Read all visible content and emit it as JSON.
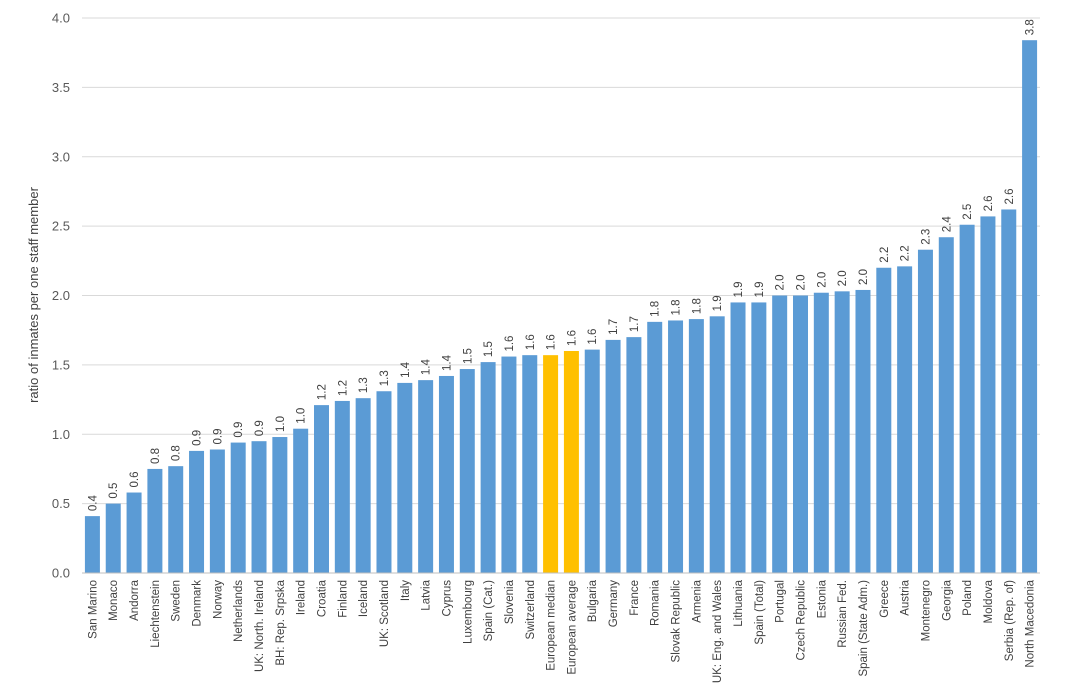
{
  "chart_data": {
    "type": "bar",
    "ylabel": "ratio of inmates per one staff member",
    "ylim": [
      0,
      4.0
    ],
    "yticks": [
      "0.0",
      "0.5",
      "1.0",
      "1.5",
      "2.0",
      "2.5",
      "3.0",
      "3.5",
      "4.0"
    ],
    "grid": true,
    "colors": {
      "bar": "#5b9bd5",
      "highlight": "#ffc000",
      "grid": "#d9d9d9"
    },
    "categories": [
      "San Marino",
      "Monaco",
      "Andorra",
      "Liechtenstein",
      "Sweden",
      "Denmark",
      "Norway",
      "Netherlands",
      "UK: North. Ireland",
      "BH: Rep. Srpska",
      "Ireland",
      "Croatia",
      "Finland",
      "Iceland",
      "UK: Scotland",
      "Italy",
      "Latvia",
      "Cyprus",
      "Luxembourg",
      "Spain (Cat.)",
      "Slovenia",
      "Switzerland",
      "European median",
      "European average",
      "Bulgaria",
      "Germany",
      "France",
      "Romania",
      "Slovak Republic",
      "Armenia",
      "UK: Eng. and Wales",
      "Lithuania",
      "Spain (Total)",
      "Portugal",
      "Czech Republic",
      "Estonia",
      "Russian Fed.",
      "Spain (State Adm.)",
      "Greece",
      "Austria",
      "Montenegro",
      "Georgia",
      "Poland",
      "Moldova",
      "Serbia (Rep. of)",
      "North Macedonia"
    ],
    "values": [
      0.41,
      0.5,
      0.58,
      0.75,
      0.77,
      0.88,
      0.89,
      0.94,
      0.95,
      0.98,
      1.04,
      1.21,
      1.24,
      1.26,
      1.31,
      1.37,
      1.39,
      1.42,
      1.47,
      1.52,
      1.56,
      1.57,
      1.57,
      1.6,
      1.61,
      1.68,
      1.7,
      1.81,
      1.82,
      1.83,
      1.85,
      1.95,
      1.95,
      2.0,
      2.0,
      2.02,
      2.03,
      2.04,
      2.2,
      2.21,
      2.33,
      2.42,
      2.51,
      2.57,
      2.62,
      3.84
    ],
    "labels": [
      "0.4",
      "0.5",
      "0.6",
      "0.8",
      "0.8",
      "0.9",
      "0.9",
      "0.9",
      "0.9",
      "1.0",
      "1.0",
      "1.2",
      "1.2",
      "1.3",
      "1.3",
      "1.4",
      "1.4",
      "1.4",
      "1.5",
      "1.5",
      "1.6",
      "1.6",
      "1.6",
      "1.6",
      "1.6",
      "1.7",
      "1.7",
      "1.8",
      "1.8",
      "1.8",
      "1.9",
      "1.9",
      "1.9",
      "2.0",
      "2.0",
      "2.0",
      "2.0",
      "2.0",
      "2.2",
      "2.2",
      "2.3",
      "2.4",
      "2.5",
      "2.6",
      "2.6",
      "3.8"
    ],
    "highlight": [
      "European median",
      "European average"
    ]
  }
}
